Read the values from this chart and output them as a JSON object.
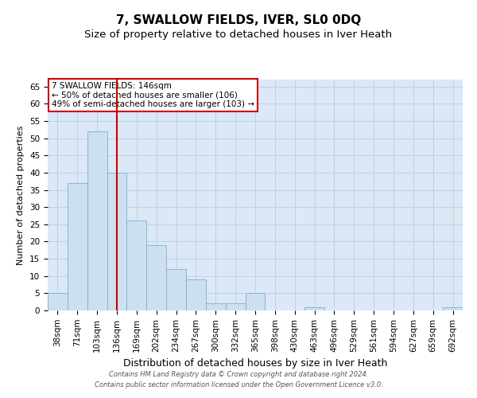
{
  "title": "7, SWALLOW FIELDS, IVER, SL0 0DQ",
  "subtitle": "Size of property relative to detached houses in Iver Heath",
  "xlabel": "Distribution of detached houses by size in Iver Heath",
  "ylabel": "Number of detached properties",
  "categories": [
    "38sqm",
    "71sqm",
    "103sqm",
    "136sqm",
    "169sqm",
    "202sqm",
    "234sqm",
    "267sqm",
    "300sqm",
    "332sqm",
    "365sqm",
    "398sqm",
    "430sqm",
    "463sqm",
    "496sqm",
    "529sqm",
    "561sqm",
    "594sqm",
    "627sqm",
    "659sqm",
    "692sqm"
  ],
  "values": [
    5,
    37,
    52,
    40,
    26,
    19,
    12,
    9,
    2,
    2,
    5,
    0,
    0,
    1,
    0,
    0,
    0,
    0,
    0,
    0,
    1
  ],
  "bar_color": "#cce0f0",
  "bar_edge_color": "#7ab0d4",
  "vline_x": 3,
  "vline_color": "#cc0000",
  "annotation_text": "7 SWALLOW FIELDS: 146sqm\n← 50% of detached houses are smaller (106)\n49% of semi-detached houses are larger (103) →",
  "annotation_box_color": "#ffffff",
  "annotation_box_edge": "#cc0000",
  "ylim": [
    0,
    67
  ],
  "yticks": [
    0,
    5,
    10,
    15,
    20,
    25,
    30,
    35,
    40,
    45,
    50,
    55,
    60,
    65
  ],
  "grid_color": "#b8cfe0",
  "background_color": "#dce8f5",
  "footer": "Contains HM Land Registry data © Crown copyright and database right 2024.\nContains public sector information licensed under the Open Government Licence v3.0.",
  "title_fontsize": 11,
  "subtitle_fontsize": 9.5,
  "xlabel_fontsize": 9,
  "ylabel_fontsize": 8,
  "tick_fontsize": 7.5,
  "annotation_fontsize": 7.5,
  "footer_fontsize": 6
}
